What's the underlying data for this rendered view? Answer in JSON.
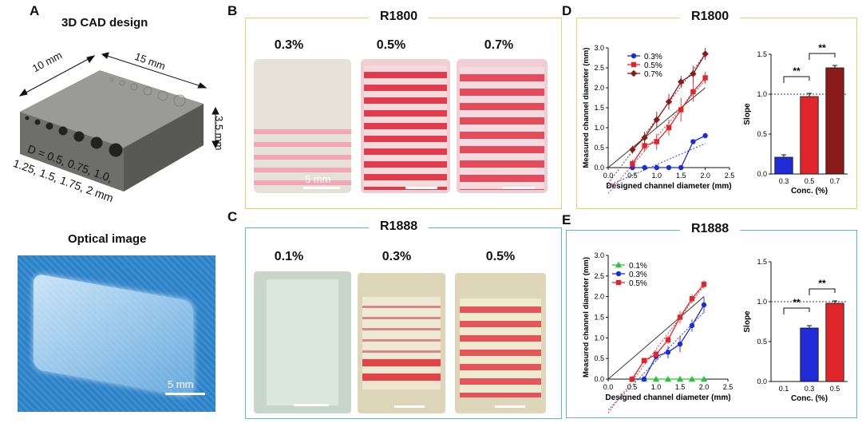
{
  "panelA": {
    "letter": "A",
    "cad_title": "3D CAD design",
    "dim_10": "10 mm",
    "dim_15": "15 mm",
    "dim_35": "3.5 mm",
    "d_line1": "D = 0.5, 0.75, 1.0,",
    "d_line2": "1.25, 1.5, 1.75, 2 mm",
    "optical_title": "Optical image",
    "scale": "5 mm"
  },
  "panelB": {
    "letter": "B",
    "title": "R1800",
    "concs": [
      "0.3%",
      "0.5%",
      "0.7%"
    ],
    "scale": "5 mm"
  },
  "panelC": {
    "letter": "C",
    "title": "R1888",
    "concs": [
      "0.1%",
      "0.3%",
      "0.5%"
    ]
  },
  "panelD": {
    "letter": "D",
    "title": "R1800"
  },
  "panelE": {
    "letter": "E",
    "title": "R1888"
  },
  "colors": {
    "blue": "#1f2bd6",
    "red": "#e0262a",
    "darkred": "#8b1a1a",
    "green": "#2ec13a",
    "gold": "#e8cf6a",
    "cyan": "#5cb8c9"
  },
  "chart_data": [
    {
      "id": "D-line",
      "type": "line",
      "title": "",
      "xlabel": "Designed channel diameter (mm)",
      "ylabel": "Measured channel diameter (mm)",
      "xlim": [
        0,
        2.5
      ],
      "ylim": [
        0,
        3.0
      ],
      "xticks": [
        "0.0",
        "0.5",
        "1.0",
        "1.5",
        "2.0",
        "2.5"
      ],
      "yticks": [
        "0.0",
        "0.5",
        "1.0",
        "1.5",
        "2.0",
        "2.5",
        "3.0"
      ],
      "x": [
        0.5,
        0.75,
        1.0,
        1.25,
        1.5,
        1.75,
        2.0
      ],
      "series": [
        {
          "name": "0.3%",
          "color": "blue",
          "marker": "circle",
          "values": [
            0.0,
            0.0,
            0.0,
            0.0,
            0.0,
            0.65,
            0.8
          ],
          "err": [
            0,
            0,
            0,
            0,
            0,
            0.05,
            0.05
          ]
        },
        {
          "name": "0.5%",
          "color": "red",
          "marker": "square",
          "values": [
            0.1,
            0.55,
            0.65,
            1.0,
            1.45,
            1.9,
            2.25
          ],
          "err": [
            0.1,
            0.15,
            0.2,
            0.2,
            0.3,
            0.25,
            0.15
          ]
        },
        {
          "name": "0.7%",
          "color": "darkred",
          "marker": "diamond",
          "values": [
            0.45,
            0.75,
            1.2,
            1.65,
            2.15,
            2.35,
            2.85
          ],
          "err": [
            0.1,
            0.15,
            0.2,
            0.2,
            0.15,
            0.2,
            0.15
          ]
        }
      ]
    },
    {
      "id": "D-bar",
      "type": "bar",
      "title": "",
      "xlabel": "Conc. (%)",
      "ylabel": "Slope",
      "categories": [
        "0.3",
        "0.5",
        "0.7"
      ],
      "values": [
        0.21,
        0.97,
        1.33
      ],
      "err": [
        0.03,
        0.04,
        0.03
      ],
      "ylim": [
        0,
        1.5
      ],
      "yticks": [
        "0.0",
        "0.5",
        "1.0",
        "1.5"
      ],
      "sig": [
        "**",
        "**"
      ]
    },
    {
      "id": "E-line",
      "type": "line",
      "title": "",
      "xlabel": "Designed channel diameter (mm)",
      "ylabel": "Measured channel diameter (mm)",
      "xlim": [
        0,
        2.5
      ],
      "ylim": [
        0,
        3.0
      ],
      "xticks": [
        "0.0",
        "0.5",
        "1.0",
        "1.5",
        "2.0",
        "2.5"
      ],
      "yticks": [
        "0.0",
        "0.5",
        "1.0",
        "1.5",
        "2.0",
        "2.5",
        "3.0"
      ],
      "x": [
        0.5,
        0.75,
        1.0,
        1.25,
        1.5,
        1.75,
        2.0
      ],
      "series": [
        {
          "name": "0.1%",
          "color": "green",
          "marker": "triangle",
          "values": [
            0,
            0,
            0,
            0,
            0,
            0,
            0
          ],
          "err": [
            0,
            0,
            0,
            0,
            0,
            0,
            0
          ]
        },
        {
          "name": "0.3%",
          "color": "blue",
          "marker": "circle",
          "values": [
            0.0,
            0.0,
            0.55,
            0.65,
            0.85,
            1.3,
            1.8
          ],
          "err": [
            0,
            0,
            0.1,
            0.15,
            0.2,
            0.15,
            0.2
          ]
        },
        {
          "name": "0.5%",
          "color": "red",
          "marker": "square",
          "values": [
            0.0,
            0.45,
            0.6,
            0.95,
            1.5,
            1.95,
            2.3
          ],
          "err": [
            0,
            0.05,
            0.1,
            0.1,
            0.15,
            0.1,
            0.1
          ]
        }
      ]
    },
    {
      "id": "E-bar",
      "type": "bar",
      "title": "",
      "xlabel": "Conc. (%)",
      "ylabel": "Slope",
      "categories": [
        "0.1",
        "0.3",
        "0.5"
      ],
      "values": [
        0.0,
        0.67,
        0.98
      ],
      "err": [
        0,
        0.03,
        0.03
      ],
      "ylim": [
        0,
        1.5
      ],
      "yticks": [
        "0.0",
        "0.5",
        "1.0",
        "1.5"
      ],
      "sig": [
        "**",
        "**"
      ]
    }
  ]
}
